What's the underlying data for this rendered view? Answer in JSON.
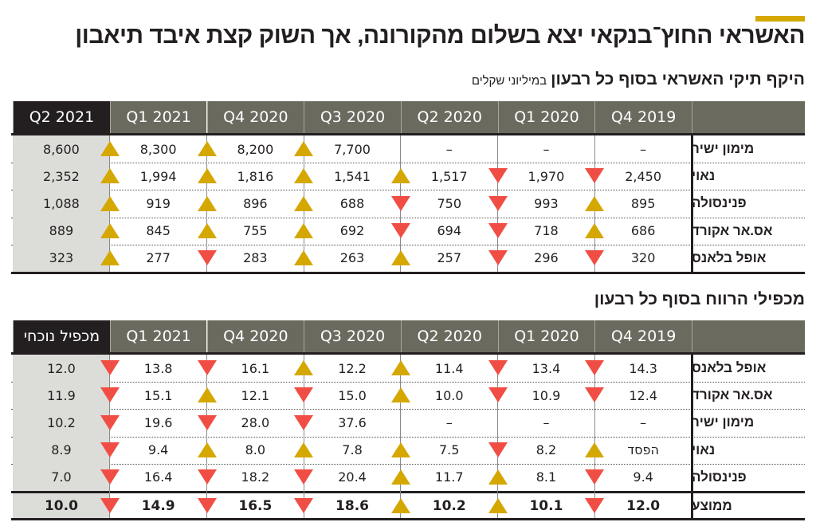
{
  "title": "האשראי החוץ־בנקאי יצא בשלום מהקורונה, אך השוק קצת איבד תיאבון",
  "colors": {
    "accent": "#d4a800",
    "up": "#d4a800",
    "down": "#f04e45",
    "header": "#6b6a5f",
    "current_header": "#231f20",
    "current_column": "#dcdcd8"
  },
  "icons": {
    "up": "triangle-up-icon",
    "down": "triangle-down-icon"
  },
  "tables": [
    {
      "title": "היקף תיקי האשראי בסוף כל רבעון",
      "unit": "במיליוני שקלים",
      "columns": [
        "Q4 2019",
        "Q1 2020",
        "Q2 2020",
        "Q3 2020",
        "Q4 2020",
        "Q1 2021",
        "Q2 2021"
      ],
      "rows": [
        {
          "label": "מימון ישיר",
          "values": [
            "–",
            "–",
            "–",
            "7,700",
            "8,200",
            "8,300",
            "8,600"
          ],
          "arrows": [
            null,
            null,
            null,
            "up",
            "up",
            "up"
          ]
        },
        {
          "label": "נאוי",
          "values": [
            "2,450",
            "1,970",
            "1,517",
            "1,541",
            "1,816",
            "1,994",
            "2,352"
          ],
          "arrows": [
            "down",
            "down",
            "up",
            "up",
            "up",
            "up"
          ]
        },
        {
          "label": "פנינסולה",
          "values": [
            "895",
            "993",
            "750",
            "688",
            "896",
            "919",
            "1,088"
          ],
          "arrows": [
            "up",
            "down",
            "down",
            "up",
            "up",
            "up"
          ]
        },
        {
          "label": "אס.אר אקורד",
          "values": [
            "686",
            "718",
            "694",
            "692",
            "755",
            "845",
            "889"
          ],
          "arrows": [
            "up",
            "down",
            "down",
            "up",
            "up",
            "up"
          ]
        },
        {
          "label": "אופל בלאנס",
          "values": [
            "320",
            "296",
            "257",
            "263",
            "283",
            "277",
            "323"
          ],
          "arrows": [
            "down",
            "down",
            "up",
            "up",
            "down",
            "up"
          ]
        }
      ]
    },
    {
      "title": "מכפילי הרווח בסוף כל רבעון",
      "unit": "",
      "columns": [
        "Q4 2019",
        "Q1 2020",
        "Q2 2020",
        "Q3 2020",
        "Q4 2020",
        "Q1 2021",
        "מכפיל נוכחי"
      ],
      "rows": [
        {
          "label": "אופל בלאנס",
          "values": [
            "14.3",
            "13.4",
            "11.4",
            "12.2",
            "16.1",
            "13.8",
            "12.0"
          ],
          "arrows": [
            "down",
            "down",
            "up",
            "up",
            "down",
            "down"
          ]
        },
        {
          "label": "אס.אר אקורד",
          "values": [
            "12.4",
            "10.9",
            "10.0",
            "15.0",
            "12.1",
            "15.1",
            "11.9"
          ],
          "arrows": [
            "down",
            "down",
            "up",
            "down",
            "up",
            "down"
          ]
        },
        {
          "label": "מימון ישיר",
          "values": [
            "–",
            "–",
            "–",
            "37.6",
            "28.0",
            "19.6",
            "10.2"
          ],
          "arrows": [
            null,
            null,
            null,
            "down",
            "down",
            "down"
          ]
        },
        {
          "label": "נאוי",
          "values": [
            "הפסד",
            "8.2",
            "7.5",
            "7.8",
            "8.0",
            "9.4",
            "8.9"
          ],
          "arrows": [
            "up",
            "down",
            "up",
            "up",
            "up",
            "down"
          ]
        },
        {
          "label": "פנינסולה",
          "values": [
            "9.4",
            "8.1",
            "11.7",
            "20.4",
            "18.2",
            "16.4",
            "7.0"
          ],
          "arrows": [
            "down",
            "up",
            "up",
            "down",
            "down",
            "down"
          ]
        }
      ],
      "summary": {
        "label": "ממוצע",
        "values": [
          "12.0",
          "10.1",
          "10.2",
          "18.6",
          "16.5",
          "14.9",
          "10.0"
        ],
        "arrows": [
          "down",
          "up",
          "up",
          "down",
          "down",
          "down"
        ]
      }
    }
  ]
}
